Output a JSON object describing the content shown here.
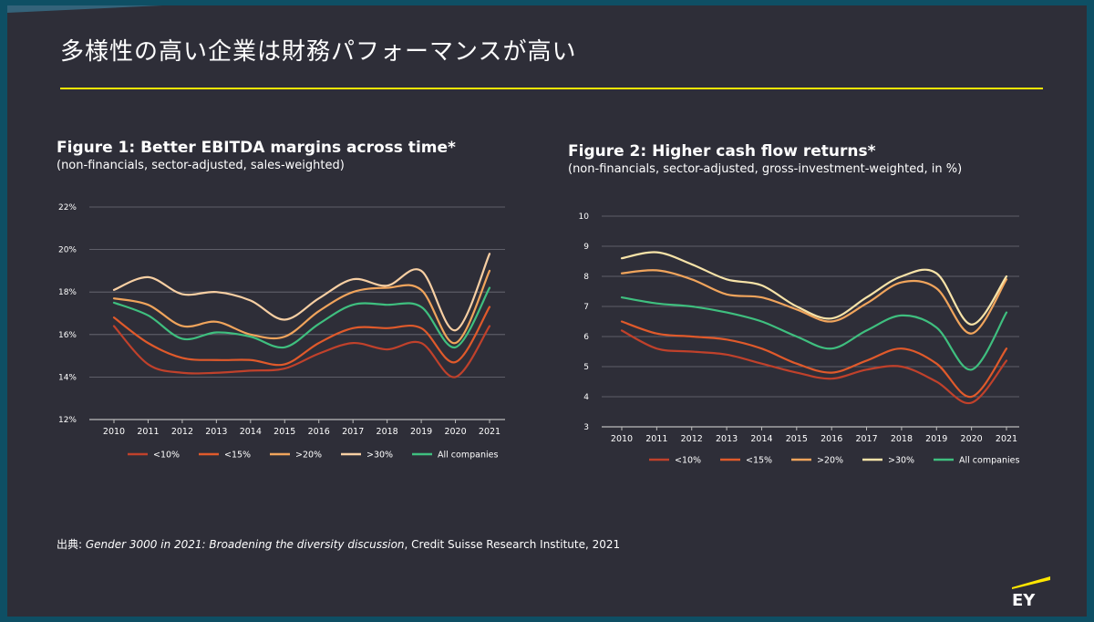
{
  "slide": {
    "title": "多様性の高い企業は財務パフォーマンスが高い",
    "source_prefix": "出典: ",
    "source_title": "Gender 3000 in 2021: Broadening the diversity discussion",
    "source_rest": ", Credit Suisse Research Institute, 2021",
    "logo_text": "EY",
    "colors": {
      "background": "#2e2e38",
      "accent": "#ffe600"
    }
  },
  "chart_data": [
    {
      "type": "line",
      "title": "Figure 1: Better EBITDA margins across time*",
      "subtitle": "(non-financials, sector-adjusted, sales-weighted)",
      "x": [
        "2010",
        "2011",
        "2012",
        "2013",
        "2014",
        "2015",
        "2016",
        "2017",
        "2018",
        "2019",
        "2020",
        "2021"
      ],
      "ylim": [
        12,
        22
      ],
      "yticks": [
        12,
        14,
        16,
        18,
        20,
        22
      ],
      "ytick_labels": [
        "12%",
        "14%",
        "16%",
        "18%",
        "20%",
        "22%"
      ],
      "grid": true,
      "legend_position": "bottom",
      "series": [
        {
          "name": "<10%",
          "color": "#c0412b",
          "values": [
            16.4,
            14.6,
            14.2,
            14.2,
            14.3,
            14.4,
            15.1,
            15.6,
            15.3,
            15.6,
            14.0,
            16.4
          ]
        },
        {
          "name": "<15%",
          "color": "#e05a2b",
          "values": [
            16.8,
            15.6,
            14.9,
            14.8,
            14.8,
            14.6,
            15.6,
            16.3,
            16.3,
            16.3,
            14.7,
            17.3
          ]
        },
        {
          "name": ">20%",
          "color": "#f0a45c",
          "values": [
            17.7,
            17.4,
            16.4,
            16.6,
            16.0,
            15.9,
            17.1,
            18.0,
            18.2,
            18.1,
            15.6,
            19.0
          ]
        },
        {
          "name": ">30%",
          "color": "#f7cfa3",
          "values": [
            18.1,
            18.7,
            17.9,
            18.0,
            17.6,
            16.7,
            17.7,
            18.6,
            18.3,
            19.0,
            16.2,
            19.8
          ]
        },
        {
          "name": "All companies",
          "color": "#3fbf7f",
          "values": [
            17.5,
            16.9,
            15.8,
            16.1,
            15.9,
            15.4,
            16.5,
            17.4,
            17.4,
            17.3,
            15.4,
            18.2
          ]
        }
      ]
    },
    {
      "type": "line",
      "title": "Figure 2: Higher cash flow returns*",
      "subtitle": "(non-financials, sector-adjusted, gross-investment-weighted, in %)",
      "x": [
        "2010",
        "2011",
        "2012",
        "2013",
        "2014",
        "2015",
        "2016",
        "2017",
        "2018",
        "2019",
        "2020",
        "2021"
      ],
      "ylim": [
        3,
        10
      ],
      "yticks": [
        3,
        4,
        5,
        6,
        7,
        8,
        9,
        10
      ],
      "ytick_labels": [
        "3",
        "4",
        "5",
        "6",
        "7",
        "8",
        "9",
        "10"
      ],
      "grid": true,
      "legend_position": "bottom",
      "series": [
        {
          "name": "<10%",
          "color": "#c0412b",
          "values": [
            6.2,
            5.6,
            5.5,
            5.4,
            5.1,
            4.8,
            4.6,
            4.9,
            5.0,
            4.5,
            3.8,
            5.2
          ]
        },
        {
          "name": "<15%",
          "color": "#e05a2b",
          "values": [
            6.5,
            6.1,
            6.0,
            5.9,
            5.6,
            5.1,
            4.8,
            5.2,
            5.6,
            5.1,
            4.0,
            5.6
          ]
        },
        {
          "name": ">20%",
          "color": "#f0a45c",
          "values": [
            8.1,
            8.2,
            7.9,
            7.4,
            7.3,
            6.9,
            6.5,
            7.1,
            7.8,
            7.6,
            6.1,
            7.9
          ]
        },
        {
          "name": ">30%",
          "color": "#f7e3a8",
          "values": [
            8.6,
            8.8,
            8.4,
            7.9,
            7.7,
            7.0,
            6.6,
            7.3,
            8.0,
            8.1,
            6.4,
            8.0
          ]
        },
        {
          "name": "All companies",
          "color": "#3fbf7f",
          "values": [
            7.3,
            7.1,
            7.0,
            6.8,
            6.5,
            6.0,
            5.6,
            6.2,
            6.7,
            6.3,
            4.9,
            6.8
          ]
        }
      ]
    }
  ]
}
